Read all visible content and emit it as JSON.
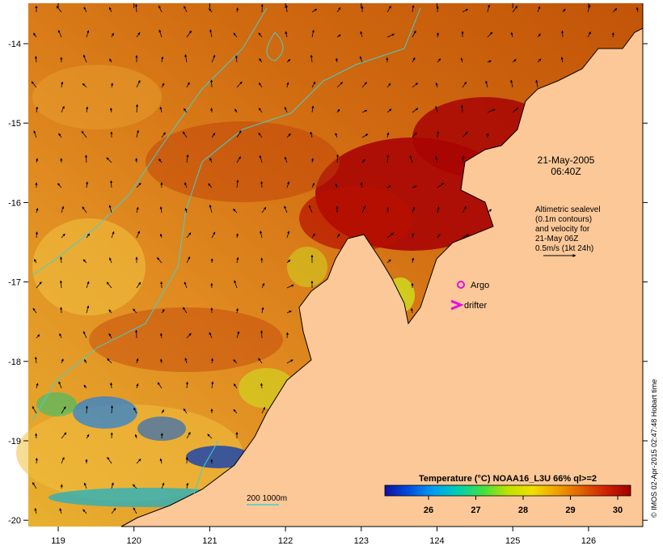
{
  "map": {
    "longitude_ticks": [
      "119",
      "120",
      "121",
      "122",
      "123",
      "124",
      "125",
      "126"
    ],
    "latitude_ticks": [
      "-14",
      "-15",
      "-16",
      "-17",
      "-18",
      "-19",
      "-20"
    ]
  },
  "timestamp": {
    "date": "21-May-2005",
    "time": "06:40Z"
  },
  "altimetry_note": {
    "lines": [
      "Altimetric sealevel",
      "(0.1m contours)",
      "and velocity for",
      "21-May 06Z",
      "0.5m/s (1kt 24h)"
    ]
  },
  "legend": {
    "argo_label": "Argo",
    "drifter_label": "drifter",
    "isobath_label": "200  1000m",
    "argo_color": "#e010e0",
    "drifter_color": "#e010e0",
    "isobath_color": "#40d0d0"
  },
  "colorbar": {
    "title": "Temperature (°C) NOAA16_L3U 66% ql>=2",
    "ticks": [
      "26",
      "27",
      "28",
      "29",
      "30"
    ],
    "colors": [
      "#1010a0",
      "#0050e0",
      "#00a0f0",
      "#00d0b0",
      "#40e040",
      "#c0e000",
      "#f0e000",
      "#f0a000",
      "#e06000",
      "#d02000",
      "#a00000"
    ]
  },
  "credit": "© IMOS 02-Apr-2015 02:47:48 Hobart time"
}
